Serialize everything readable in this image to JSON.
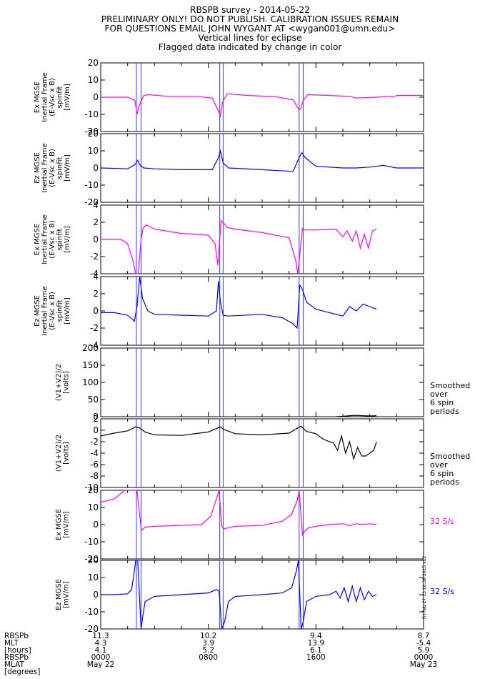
{
  "header": {
    "lines": [
      "RBSPB survey - 2014-05-22",
      "PRELIMINARY ONLY! DO NOT PUBLISH. CALIBRATION ISSUES REMAIN",
      "FOR QUESTIONS EMAIL JOHN WYGANT AT <wygan001@umn.edu>",
      "Vertical lines for eclipse",
      "Flagged data indicated by change in color"
    ]
  },
  "colors": {
    "magenta": "#ff00ff",
    "blue": "#0000ff",
    "black": "#000000",
    "eclipse": "#3333ff"
  },
  "eclipse_hours": [
    2.65,
    3.0,
    8.85,
    9.1,
    14.75,
    15.05
  ],
  "stamp": "Fri Feb 27 13:16:38 2015 v02",
  "chart_data": [
    {
      "type": "line",
      "ylabel": [
        "Ex MGSE",
        "Inertial Frame",
        "(E-Vsc x B)",
        "spinfit",
        "[mV/m]"
      ],
      "ylim": [
        -20,
        20
      ],
      "ticks": [
        -20,
        -10,
        0,
        10,
        20
      ],
      "color": "magenta",
      "side_label": [],
      "series": {
        "x": [
          0,
          2.0,
          2.55,
          2.7,
          2.85,
          3.2,
          3.5,
          5,
          7,
          8.3,
          8.75,
          8.9,
          9.05,
          9.4,
          11,
          13,
          14.3,
          14.75,
          14.9,
          15.05,
          15.4,
          17,
          18.5,
          19,
          20.5,
          21.5,
          21.7,
          22,
          24
        ],
        "y": [
          0,
          0,
          -2,
          -10,
          -5,
          1,
          1.5,
          0.5,
          0.5,
          -0.5,
          -8,
          -11,
          -3,
          2,
          1,
          0.3,
          -1.5,
          -7.5,
          -6,
          -2,
          1.5,
          1,
          0.5,
          -0.5,
          0,
          0.5,
          0,
          1,
          1
        ]
      }
    },
    {
      "type": "line",
      "ylabel": [
        "Ez MGSE",
        "Inertial Frame",
        "(E-Vsc x B)",
        "spinfit",
        "[mV/m]"
      ],
      "ylim": [
        -20,
        20
      ],
      "ticks": [
        -20,
        -10,
        0,
        10,
        20
      ],
      "color": "blue",
      "side_label": [],
      "series": {
        "x": [
          0,
          2.0,
          2.55,
          2.75,
          2.9,
          3.2,
          4,
          6,
          8.3,
          8.75,
          8.9,
          9.1,
          9.5,
          12,
          14.3,
          14.75,
          14.95,
          15.2,
          16,
          18,
          19,
          20,
          21,
          22,
          24
        ],
        "y": [
          0,
          -0.5,
          2,
          4.5,
          2,
          0,
          -0.5,
          -1,
          -1,
          6,
          10,
          3,
          0,
          -1,
          -2,
          6,
          9,
          6,
          1,
          0,
          0,
          0.5,
          1.5,
          0,
          0
        ]
      }
    },
    {
      "type": "line",
      "ylabel": [
        "Ex MGSE",
        "Inertial Frame",
        "(E-Vsc x B)",
        "spinfit",
        "[mV/m]"
      ],
      "ylim": [
        -4,
        4
      ],
      "ticks": [
        -4,
        -2,
        0,
        2,
        4
      ],
      "color": "magenta",
      "side_label": [],
      "series": {
        "x": [
          0,
          0.5,
          1.0,
          1.5,
          2.0,
          2.4,
          2.6,
          2.8,
          3.0,
          3.15,
          3.4,
          4,
          6,
          8.0,
          8.5,
          8.7,
          8.95,
          9.1,
          9.4,
          10,
          12,
          14.0,
          14.5,
          14.65,
          15.0,
          15.2,
          16,
          17.5,
          18,
          18.3,
          18.7,
          19,
          19.3,
          19.6,
          19.9,
          20.2,
          20.5
        ],
        "y": [
          0,
          0,
          0,
          0,
          -0.5,
          -2.5,
          -4,
          -4,
          0,
          1.3,
          1.7,
          1.2,
          0.7,
          0.5,
          -0.5,
          -3,
          2.2,
          2.0,
          1.4,
          1.2,
          0.8,
          0.2,
          -2.5,
          -4,
          1.3,
          1.1,
          1.1,
          1.2,
          0.3,
          1.0,
          -0.2,
          1.0,
          -1.0,
          0.6,
          -1.0,
          1.0,
          1.2
        ]
      }
    },
    {
      "type": "line",
      "ylabel": [
        "Ez MGSE",
        "Inertial Frame",
        "(E-Vsc x B)",
        "spinfit",
        "[mV/m]"
      ],
      "ylim": [
        -4,
        4
      ],
      "ticks": [
        -4,
        -2,
        0,
        2,
        4
      ],
      "color": "blue",
      "side_label": [],
      "series": {
        "x": [
          0,
          1.0,
          2.0,
          2.5,
          2.7,
          2.9,
          3.1,
          3.5,
          4,
          6,
          8.0,
          8.6,
          8.75,
          8.9,
          9.1,
          9.5,
          12,
          13.5,
          14.3,
          14.6,
          14.8,
          15.0,
          15.3,
          16,
          17,
          18,
          18.5,
          19,
          19.5,
          20,
          20.5
        ],
        "y": [
          -0.2,
          -0.2,
          -0.5,
          -1.2,
          0.5,
          4,
          1.5,
          0,
          -0.4,
          -0.5,
          -0.6,
          0,
          3.5,
          1,
          -0.5,
          -0.6,
          -0.4,
          -0.8,
          -1.5,
          -2,
          3,
          2.5,
          1,
          0.2,
          -0.2,
          -0.6,
          0.5,
          0,
          0.8,
          0.5,
          0.2
        ]
      }
    },
    {
      "type": "line",
      "ylabel": [
        "(V1+V2)/2",
        "[volts]"
      ],
      "ylim": [
        0,
        200
      ],
      "ticks": [
        0,
        50,
        100,
        150,
        200
      ],
      "color": "black",
      "side_label": [
        "Smoothed",
        "over",
        "6 spin",
        "periods"
      ],
      "series": {
        "x": [
          17.5,
          18,
          18.5,
          19,
          19.5,
          20,
          20.5
        ],
        "y": [
          0,
          1,
          3,
          4,
          3,
          2,
          3
        ]
      }
    },
    {
      "type": "line",
      "ylabel": [
        "(V1+V2)/2",
        "[volts]"
      ],
      "ylim": [
        -10,
        2
      ],
      "ticks": [
        -10,
        -8,
        -6,
        -4,
        -2,
        0,
        2
      ],
      "color": "black",
      "side_label": [
        "Smoothed",
        "over",
        "6 spin",
        "periods"
      ],
      "series": {
        "x": [
          0,
          1,
          2,
          2.6,
          2.9,
          3.3,
          4,
          6,
          8,
          8.5,
          8.9,
          9.2,
          10,
          12,
          14,
          14.5,
          14.9,
          15.3,
          16,
          16.5,
          17,
          17.3,
          17.6,
          17.9,
          18.2,
          18.5,
          18.8,
          19.1,
          19.4,
          19.7,
          20.0,
          20.3,
          20.5
        ],
        "y": [
          -1,
          -0.5,
          -0.1,
          0.6,
          0.4,
          -0.3,
          -0.8,
          -0.9,
          -0.3,
          0.2,
          0.6,
          0.1,
          -0.6,
          -0.8,
          -0.5,
          0.2,
          0.7,
          -0.2,
          -0.6,
          -1.5,
          -2,
          -2.2,
          -3.5,
          -1,
          -4,
          -2,
          -5,
          -3,
          -4.5,
          -4.5,
          -4,
          -3.5,
          -2
        ]
      }
    },
    {
      "type": "line",
      "ylabel": [
        "Ex MGSE",
        "[mV/m]"
      ],
      "ylim": [
        -20,
        20
      ],
      "ticks": [
        -20,
        -10,
        0,
        10,
        20
      ],
      "color": "magenta",
      "side_label": [
        "32 S/s"
      ],
      "series": {
        "x": [
          0,
          1.0,
          1.8,
          2.3,
          2.55,
          2.7,
          3.0,
          3.1,
          3.3,
          4,
          6,
          7.5,
          8.2,
          8.6,
          8.8,
          9.0,
          9.2,
          9.4,
          10,
          12,
          13.5,
          14.2,
          14.6,
          14.75,
          15.0,
          15.15,
          15.4,
          16,
          17,
          18,
          18.5,
          19,
          19.5,
          20,
          20.5
        ],
        "y": [
          13,
          15,
          20,
          20,
          20,
          20,
          -2,
          -3,
          -1.5,
          -1,
          -0.5,
          0,
          5,
          15,
          20,
          -1,
          -2.5,
          -2,
          -1,
          -0.5,
          2,
          6,
          14,
          20,
          -6,
          -4,
          -2,
          -1,
          0,
          0.5,
          -0.5,
          0.5,
          0,
          0.5,
          0
        ]
      }
    },
    {
      "type": "line",
      "ylabel": [
        "Ez MGSE",
        "[mV/m]"
      ],
      "ylim": [
        -20,
        20
      ],
      "ticks": [
        -20,
        -10,
        0,
        10,
        20
      ],
      "color": "blue",
      "side_label": [
        "32 S/s"
      ],
      "series": {
        "x": [
          0,
          1.0,
          2.0,
          2.3,
          2.5,
          2.6,
          2.75,
          3.0,
          3.1,
          3.3,
          4,
          6,
          8,
          8.6,
          8.8,
          9.0,
          9.2,
          9.5,
          10,
          12,
          13.5,
          14.2,
          14.55,
          14.7,
          14.9,
          15.05,
          15.3,
          16,
          17,
          17.5,
          17.8,
          18.1,
          18.4,
          18.7,
          19.0,
          19.3,
          19.6,
          19.9,
          20.2,
          20.5
        ],
        "y": [
          0,
          0,
          0.5,
          3,
          14,
          20,
          20,
          -20,
          -14,
          -4,
          -1,
          0,
          1,
          3,
          2,
          -20,
          -16,
          -4,
          -1,
          0,
          1,
          4,
          14,
          20,
          -20,
          -16,
          -4,
          -1,
          0,
          2,
          -2,
          4,
          -4,
          5,
          -4,
          4,
          -3,
          2,
          -1,
          0
        ]
      }
    }
  ],
  "xaxis": {
    "row_labels": [
      "RBSPb",
      "MLT",
      "[hours]",
      "RBSPb",
      "MLAT",
      "[degrees]"
    ],
    "ticks": [
      {
        "hours": 0,
        "values": [
          "11.3",
          "4.3",
          "4.1",
          "0000",
          "May 22"
        ]
      },
      {
        "hours": 8,
        "values": [
          "10.2",
          "3.9",
          "5.2",
          "0800",
          ""
        ]
      },
      {
        "hours": 16,
        "values": [
          "9.4",
          "13.9",
          "6.1",
          "1600",
          ""
        ]
      },
      {
        "hours": 24,
        "values": [
          "8.7",
          "-5.4",
          "5.9",
          "0000",
          "May 23"
        ]
      }
    ]
  }
}
